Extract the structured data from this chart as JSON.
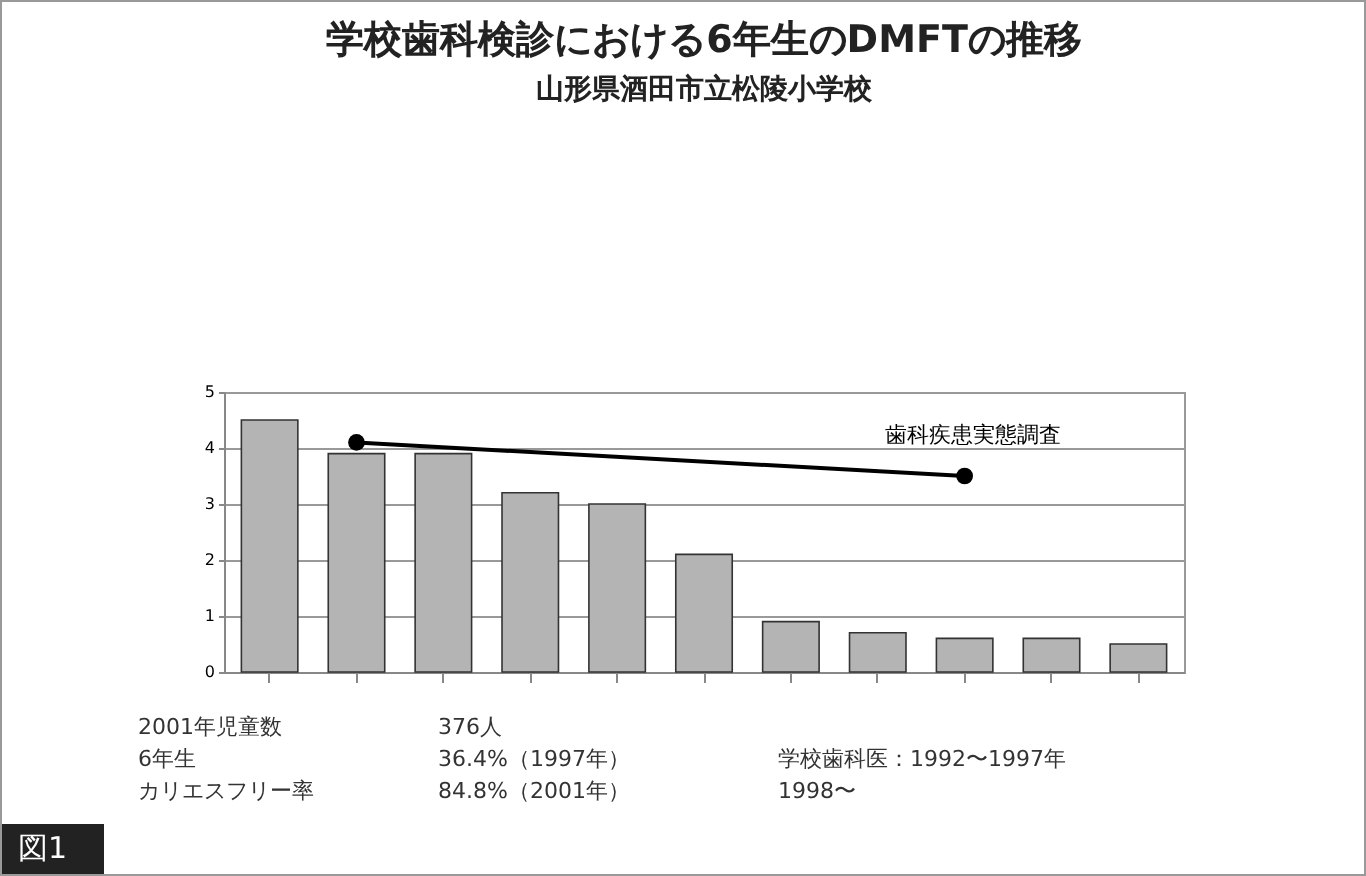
{
  "chart_data": {
    "type": "bar",
    "title": "学校歯科検診における6年生のDMFTの推移",
    "subtitle": "山形県酒田市立松陵小学校",
    "categories": [
      null,
      null,
      null,
      null,
      null,
      null,
      null,
      null,
      null,
      null,
      null
    ],
    "series": [
      {
        "color": "#b4b4b4",
        "values": [
          4.5,
          3.9,
          3.9,
          3.2,
          3.0,
          2.1,
          0.9,
          0.7,
          0.6,
          0.6,
          0.5
        ]
      },
      {
        "type": "line",
        "name": "歯科疾患実態調査",
        "color": "#000000",
        "values": [
          null,
          4.1,
          null,
          null,
          null,
          null,
          null,
          null,
          3.5,
          null,
          null
        ]
      }
    ],
    "ylim": [
      0,
      5
    ],
    "yticks": [
      0,
      1,
      2,
      3,
      4,
      5
    ],
    "grid": "y",
    "marker": "circle",
    "annotations": [
      "2001年児童数",
      "376人",
      "6年生",
      "36.4%（1997年）",
      "学校歯科医：1992〜1997年",
      "カリエスフリー率",
      "84.8%（2001年）",
      "1998〜",
      "図1"
    ]
  }
}
